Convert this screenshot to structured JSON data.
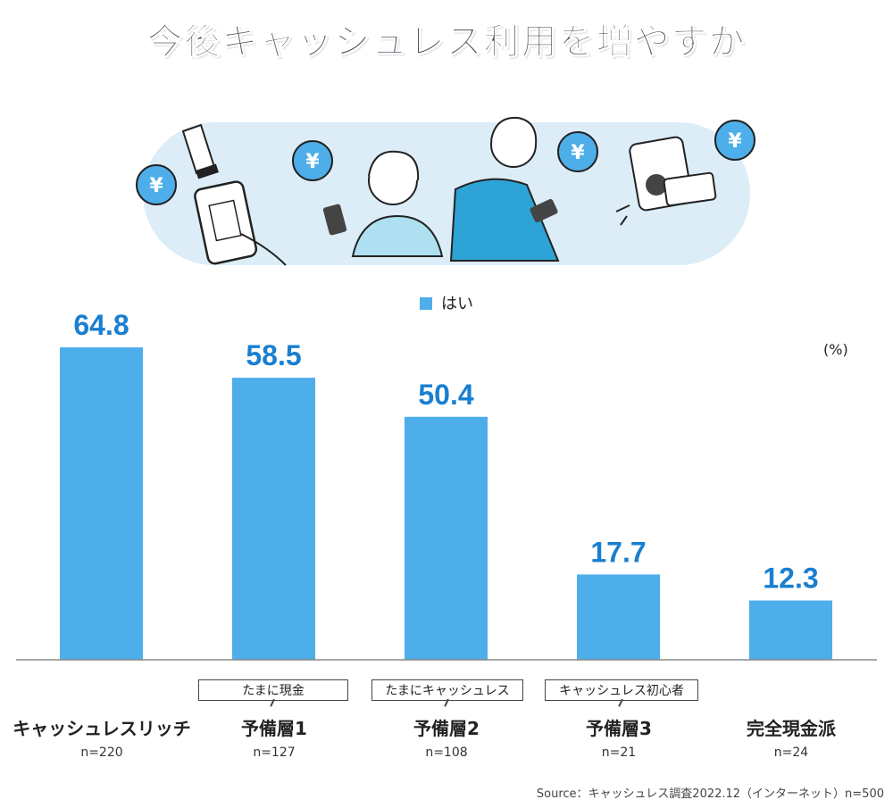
{
  "title": "今後キャッシュレス利用を増やすか",
  "legend": "はい",
  "unit": "(%)",
  "source": "Source：キャッシュレス調査2022.12（インターネット）n=500",
  "illustration": {
    "yen_symbol": "¥"
  },
  "tags": [
    "たまに現金",
    "たまにキャッシュレス",
    "キャッシュレス初心者"
  ],
  "categories_n": [
    "n=220",
    "n=127",
    "n=108",
    "n=21",
    "n=24"
  ],
  "colors": {
    "bar": "#4eaeea",
    "value_label": "#1a7fd0",
    "pill": "#dcedf8",
    "bubble": "#4eaeea"
  },
  "chart_data": {
    "type": "bar",
    "categories": [
      "キャッシュレスリッチ",
      "予備層1",
      "予備層2",
      "予備層3",
      "完全現金派"
    ],
    "series": [
      {
        "name": "はい",
        "values": [
          64.8,
          58.5,
          50.4,
          17.7,
          12.3
        ]
      }
    ],
    "ylim": [
      0,
      70
    ],
    "grid": false,
    "legend_position": "top-center"
  }
}
